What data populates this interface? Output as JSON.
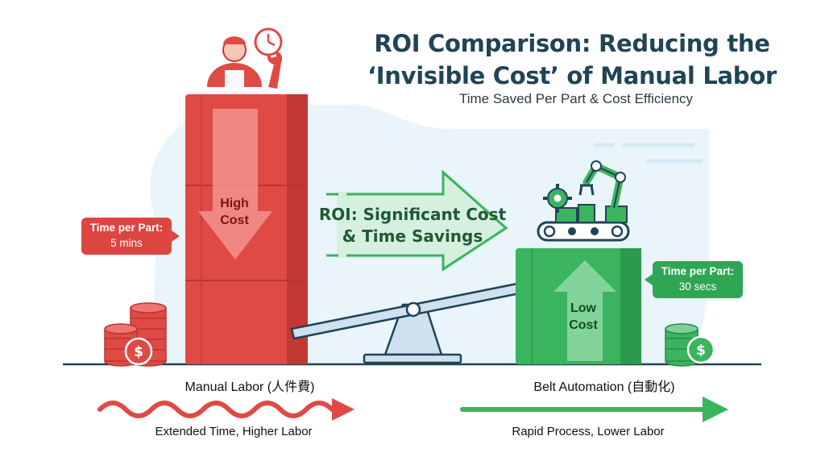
{
  "title": {
    "line1": "ROI Comparison: Reducing the",
    "line2": "‘Invisible Cost’ of Manual Labor"
  },
  "subtitle": "Time Saved Per Part & Cost Efficiency",
  "manual": {
    "badge_line1": "Time per Part:",
    "badge_line2": "5 mins",
    "block_line1": "High",
    "block_line2": "Cost",
    "label": "Manual Labor (人件費)",
    "caption": "Extended Time, Higher Labor"
  },
  "roi": {
    "line1": "ROI: Significant Cost",
    "line2": "& Time Savings"
  },
  "automation": {
    "badge_line1": "Time per Part:",
    "badge_line2": "30 secs",
    "block_line1": "Low",
    "block_line2": "Cost",
    "label": "Belt Automation (自動化)",
    "caption": "Rapid Process, Lower Labor"
  },
  "icons": [
    "worker-icon",
    "clock-icon",
    "wrench-icon",
    "down-arrow-icon",
    "coin-stack-icon",
    "dollar-coin-icon",
    "seesaw-icon",
    "right-arrow-icon",
    "robot-arm-icon",
    "gear-icon",
    "conveyor-belt-icon",
    "up-arrow-icon"
  ],
  "colors": {
    "manual_red": "#e04a45",
    "automation_green": "#3bb45f",
    "title": "#1f4456",
    "background_tint": "#e8f3fa"
  }
}
